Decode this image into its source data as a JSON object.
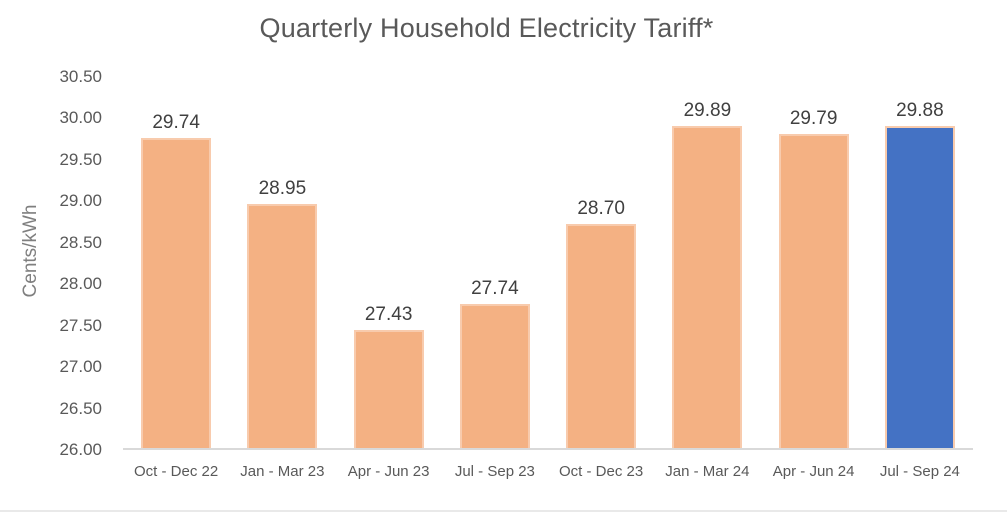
{
  "chart_data": {
    "type": "bar",
    "title": "Quarterly Household Electricity Tariff*",
    "ylabel": "Cents/kWh",
    "xlabel": "",
    "categories": [
      "Oct - Dec 22",
      "Jan - Mar 23",
      "Apr - Jun 23",
      "Jul - Sep 23",
      "Oct - Dec 23",
      "Jan - Mar 24",
      "Apr - Jun 24",
      "Jul - Sep 24"
    ],
    "values": [
      29.74,
      28.95,
      27.43,
      27.74,
      28.7,
      29.89,
      29.79,
      29.88
    ],
    "data_labels": [
      "29.74",
      "28.95",
      "27.43",
      "27.74",
      "28.70",
      "29.89",
      "29.79",
      "29.88"
    ],
    "ylim": [
      26.0,
      30.5
    ],
    "ytick_values": [
      26.0,
      26.5,
      27.0,
      27.5,
      28.0,
      28.5,
      29.0,
      29.5,
      30.0,
      30.5
    ],
    "ytick_labels": [
      "26.00",
      "26.50",
      "27.00",
      "27.50",
      "28.00",
      "28.50",
      "29.00",
      "29.50",
      "30.00",
      "30.50"
    ],
    "grid": false,
    "legend": "none",
    "highlight_index": 7,
    "colors": {
      "bar_fill": "#F4B183",
      "bar_border": "#F8CBAD",
      "highlight_fill": "#4472C4",
      "text": "#595959",
      "data_label_text": "#404040",
      "axis_line": "#D9D9D9",
      "footer_divider": "#E9E9E9"
    }
  }
}
